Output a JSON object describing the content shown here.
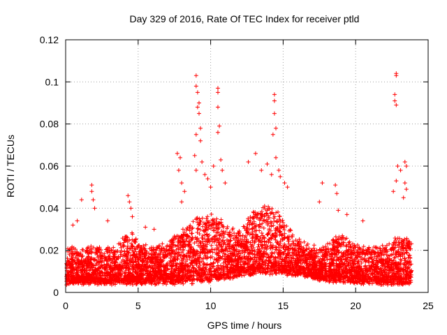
{
  "chart_data": {
    "type": "scatter",
    "title": "Day 329 of 2016, Rate Of TEC Index for receiver ptld",
    "xlabel": "GPS time / hours",
    "ylabel": "ROTI / TECUs",
    "xlim": [
      0,
      25
    ],
    "ylim": [
      0,
      0.12
    ],
    "xticks": [
      0,
      5,
      10,
      15,
      20,
      25
    ],
    "yticks": [
      0,
      0.02,
      0.04,
      0.06,
      0.08,
      0.1,
      0.12
    ],
    "xtick_labels": [
      "0",
      "5",
      "10",
      "15",
      "20",
      "25"
    ],
    "ytick_labels": [
      "0",
      "0.02",
      "0.04",
      "0.06",
      "0.08",
      "0.1",
      "0.12"
    ],
    "grid": true,
    "marker": "+",
    "color": "#ff0000",
    "series": [
      {
        "name": "ROTI",
        "points": [
          [
            0.5,
            0.032
          ],
          [
            0.8,
            0.034
          ],
          [
            1.1,
            0.044
          ],
          [
            1.8,
            0.051
          ],
          [
            1.8,
            0.048
          ],
          [
            1.9,
            0.044
          ],
          [
            2.0,
            0.04
          ],
          [
            2.9,
            0.034
          ],
          [
            4.3,
            0.046
          ],
          [
            4.4,
            0.043
          ],
          [
            4.5,
            0.04
          ],
          [
            4.6,
            0.036
          ],
          [
            5.5,
            0.031
          ],
          [
            6.1,
            0.03
          ],
          [
            7.7,
            0.066
          ],
          [
            7.9,
            0.064
          ],
          [
            7.8,
            0.058
          ],
          [
            8.0,
            0.052
          ],
          [
            8.2,
            0.048
          ],
          [
            8.0,
            0.043
          ],
          [
            9.0,
            0.103
          ],
          [
            9.0,
            0.098
          ],
          [
            9.1,
            0.095
          ],
          [
            9.2,
            0.09
          ],
          [
            9.1,
            0.088
          ],
          [
            9.2,
            0.085
          ],
          [
            9.3,
            0.078
          ],
          [
            9.0,
            0.075
          ],
          [
            9.3,
            0.072
          ],
          [
            8.9,
            0.065
          ],
          [
            9.4,
            0.062
          ],
          [
            9.0,
            0.058
          ],
          [
            9.6,
            0.056
          ],
          [
            9.8,
            0.054
          ],
          [
            10.0,
            0.05
          ],
          [
            10.2,
            0.06
          ],
          [
            10.5,
            0.097
          ],
          [
            10.5,
            0.095
          ],
          [
            10.5,
            0.088
          ],
          [
            10.6,
            0.079
          ],
          [
            10.5,
            0.076
          ],
          [
            10.7,
            0.063
          ],
          [
            10.8,
            0.058
          ],
          [
            11.0,
            0.052
          ],
          [
            13.1,
            0.066
          ],
          [
            12.6,
            0.062
          ],
          [
            13.5,
            0.058
          ],
          [
            13.9,
            0.061
          ],
          [
            14.2,
            0.056
          ],
          [
            14.4,
            0.094
          ],
          [
            14.4,
            0.091
          ],
          [
            14.4,
            0.085
          ],
          [
            14.5,
            0.078
          ],
          [
            14.3,
            0.075
          ],
          [
            14.5,
            0.064
          ],
          [
            14.7,
            0.058
          ],
          [
            14.8,
            0.055
          ],
          [
            15.1,
            0.052
          ],
          [
            15.3,
            0.05
          ],
          [
            17.7,
            0.052
          ],
          [
            18.6,
            0.051
          ],
          [
            18.7,
            0.047
          ],
          [
            17.5,
            0.043
          ],
          [
            18.8,
            0.039
          ],
          [
            19.4,
            0.037
          ],
          [
            20.5,
            0.034
          ],
          [
            22.8,
            0.104
          ],
          [
            22.8,
            0.103
          ],
          [
            22.7,
            0.094
          ],
          [
            22.7,
            0.091
          ],
          [
            22.8,
            0.089
          ],
          [
            22.9,
            0.06
          ],
          [
            22.8,
            0.053
          ],
          [
            22.6,
            0.048
          ],
          [
            23.1,
            0.058
          ],
          [
            23.4,
            0.062
          ],
          [
            23.5,
            0.06
          ],
          [
            23.4,
            0.052
          ],
          [
            23.5,
            0.049
          ],
          [
            23.3,
            0.045
          ]
        ]
      }
    ]
  }
}
